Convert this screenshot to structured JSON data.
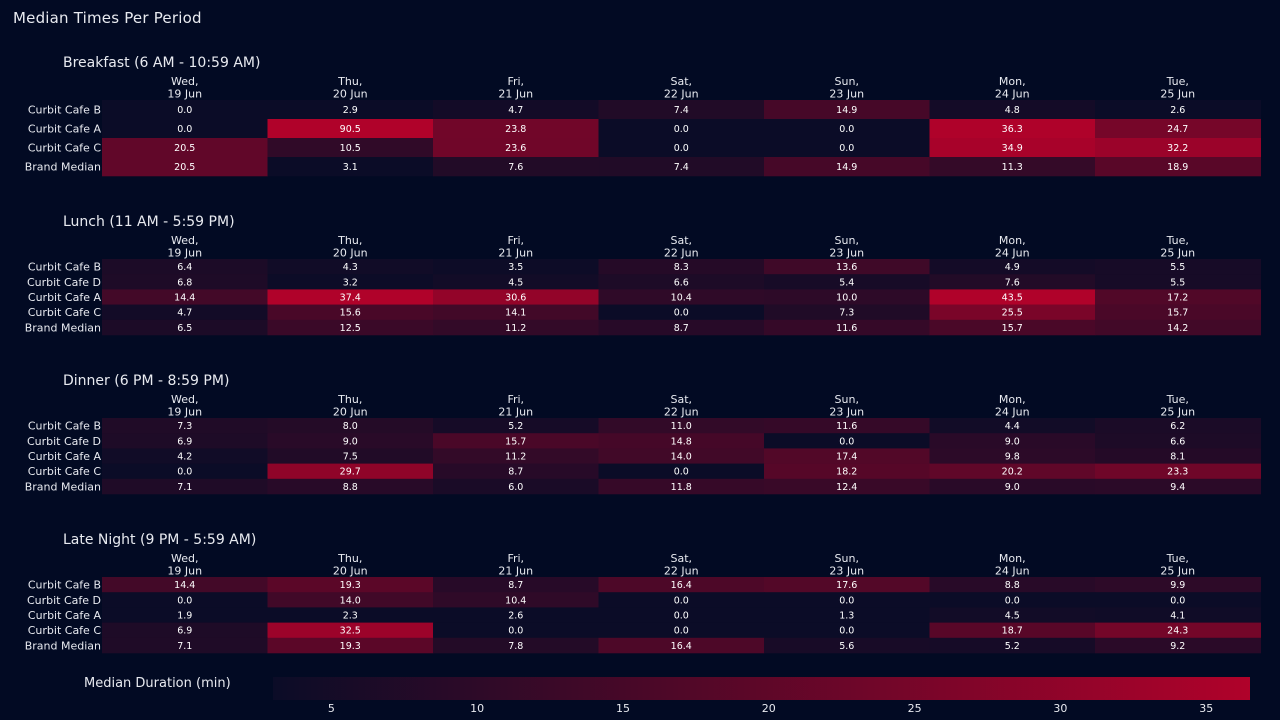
{
  "title": "Median Times Per Period",
  "colors": {
    "background": "#020a23",
    "low": "#0b0c27",
    "high": "#b0022a"
  },
  "chart_data": {
    "type": "heatmap",
    "days": [
      "Wed,\n19 Jun",
      "Thu,\n20 Jun",
      "Fri,\n21 Jun",
      "Sat,\n22 Jun",
      "Sun,\n23 Jun",
      "Mon,\n24 Jun",
      "Tue,\n25 Jun"
    ],
    "panels": [
      {
        "title": "Breakfast (6 AM - 10:59 AM)",
        "rows": [
          "Curbit Cafe B",
          "Curbit Cafe A",
          "Curbit Cafe C",
          "Brand Median"
        ],
        "values": [
          [
            0.0,
            2.9,
            4.7,
            7.4,
            14.9,
            4.8,
            2.6
          ],
          [
            0.0,
            90.5,
            23.8,
            0.0,
            0.0,
            36.3,
            24.7
          ],
          [
            20.5,
            10.5,
            23.6,
            0.0,
            0.0,
            34.9,
            32.2
          ],
          [
            20.5,
            3.1,
            7.6,
            7.4,
            14.9,
            11.3,
            18.9
          ]
        ]
      },
      {
        "title": "Lunch (11 AM - 5:59 PM)",
        "rows": [
          "Curbit Cafe B",
          "Curbit Cafe D",
          "Curbit Cafe A",
          "Curbit Cafe C",
          "Brand Median"
        ],
        "values": [
          [
            6.4,
            4.3,
            3.5,
            8.3,
            13.6,
            4.9,
            5.5
          ],
          [
            6.8,
            3.2,
            4.5,
            6.6,
            5.4,
            7.6,
            5.5
          ],
          [
            14.4,
            37.4,
            30.6,
            10.4,
            10.0,
            43.5,
            17.2
          ],
          [
            4.7,
            15.6,
            14.1,
            0.0,
            7.3,
            25.5,
            15.7
          ],
          [
            6.5,
            12.5,
            11.2,
            8.7,
            11.6,
            15.7,
            14.2
          ]
        ]
      },
      {
        "title": "Dinner (6 PM - 8:59 PM)",
        "rows": [
          "Curbit Cafe B",
          "Curbit Cafe D",
          "Curbit Cafe A",
          "Curbit Cafe C",
          "Brand Median"
        ],
        "values": [
          [
            7.3,
            8.0,
            5.2,
            11.0,
            11.6,
            4.4,
            6.2
          ],
          [
            6.9,
            9.0,
            15.7,
            14.8,
            0.0,
            9.0,
            6.6
          ],
          [
            4.2,
            7.5,
            11.2,
            14.0,
            17.4,
            9.8,
            8.1
          ],
          [
            0.0,
            29.7,
            8.7,
            0.0,
            18.2,
            20.2,
            23.3
          ],
          [
            7.1,
            8.8,
            6.0,
            11.8,
            12.4,
            9.0,
            9.4
          ]
        ]
      },
      {
        "title": "Late Night (9 PM - 5:59 AM)",
        "rows": [
          "Curbit Cafe B",
          "Curbit Cafe D",
          "Curbit Cafe A",
          "Curbit Cafe C",
          "Brand Median"
        ],
        "values": [
          [
            14.4,
            19.3,
            8.7,
            16.4,
            17.6,
            8.8,
            9.9
          ],
          [
            0.0,
            14.0,
            10.4,
            0.0,
            0.0,
            0.0,
            0.0
          ],
          [
            1.9,
            2.3,
            2.6,
            0.0,
            1.3,
            4.5,
            4.1
          ],
          [
            6.9,
            32.5,
            0.0,
            0.0,
            0.0,
            18.7,
            24.3
          ],
          [
            7.1,
            19.3,
            7.8,
            16.4,
            5.6,
            5.2,
            9.2
          ]
        ]
      }
    ],
    "colorbar": {
      "title": "Median Duration (min)",
      "range": [
        3,
        36.5
      ],
      "ticks": [
        5,
        10,
        15,
        20,
        25,
        30,
        35
      ]
    }
  }
}
